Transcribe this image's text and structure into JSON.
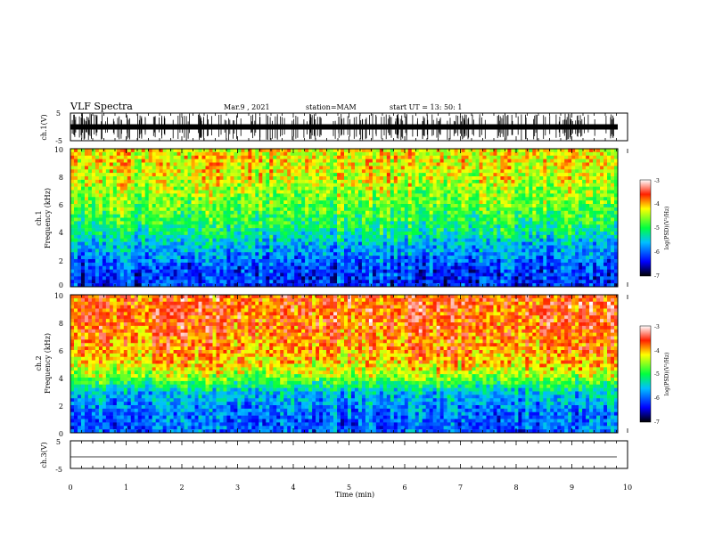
{
  "header": {
    "title": "VLF Spectra",
    "date": "Mar.9 , 2021",
    "station": "station=MAM",
    "start": "start UT = 13: 50: 1"
  },
  "chart_data": [
    {
      "type": "line",
      "panel": "ch1-waveform",
      "ylabel": "ch.1(V)",
      "ylim": [
        -5,
        5
      ],
      "yticks": [
        "5",
        "-5"
      ],
      "xlim": [
        0,
        10
      ],
      "description_values": {
        "amplitude_range": [
          -5,
          5
        ],
        "density": "dense impulsive spikes"
      }
    },
    {
      "type": "heatmap",
      "panel": "ch1-spectrogram",
      "ylabel_lines": [
        "ch.1",
        "Frequency (kHz)"
      ],
      "ylim": [
        0,
        10
      ],
      "yticks": [
        "0",
        "2",
        "4",
        "6",
        "8",
        "10"
      ],
      "xlim": [
        0,
        10
      ],
      "colorbar": {
        "label": "log(PSD)(V²/Hz)",
        "range": [
          -7,
          -3
        ],
        "ticks": [
          "-3",
          "-4",
          "-5",
          "-6",
          "-7"
        ]
      },
      "profile_khz": [
        0,
        1,
        2,
        3,
        4,
        5,
        6,
        7,
        8,
        9,
        10
      ],
      "profile_logpsd": [
        -6.2,
        -6.2,
        -5.9,
        -5.6,
        -5.2,
        -4.9,
        -4.7,
        -4.5,
        -4.3,
        -4.2,
        -4.2
      ]
    },
    {
      "type": "heatmap",
      "panel": "ch2-spectrogram",
      "ylabel_lines": [
        "ch.2",
        "Frequency (kHz)"
      ],
      "ylim": [
        0,
        10
      ],
      "yticks": [
        "0",
        "2",
        "4",
        "6",
        "8",
        "10"
      ],
      "xlim": [
        0,
        10
      ],
      "colorbar": {
        "label": "log(PSD)(V²/Hz)",
        "range": [
          -7,
          -3
        ],
        "ticks": [
          "-3",
          "-4",
          "-5",
          "-6",
          "-7"
        ]
      },
      "profile_khz": [
        0,
        1,
        2,
        3,
        4,
        5,
        6,
        7,
        8,
        9,
        10
      ],
      "profile_logpsd": [
        -6.0,
        -6.0,
        -5.8,
        -5.5,
        -4.6,
        -4.1,
        -3.9,
        -3.8,
        -3.7,
        -3.7,
        -3.7
      ]
    },
    {
      "type": "line",
      "panel": "ch3-waveform",
      "ylabel": "ch.3(V)",
      "ylim": [
        -5,
        5
      ],
      "yticks": [
        "5",
        "-5"
      ],
      "xlim": [
        0,
        10
      ],
      "xlabel": "Time (min)",
      "xticks": [
        "0",
        "1",
        "2",
        "3",
        "4",
        "5",
        "6",
        "7",
        "8",
        "9",
        "10"
      ],
      "values": [
        [
          0,
          -2
        ],
        [
          9.8,
          -2
        ]
      ]
    }
  ]
}
